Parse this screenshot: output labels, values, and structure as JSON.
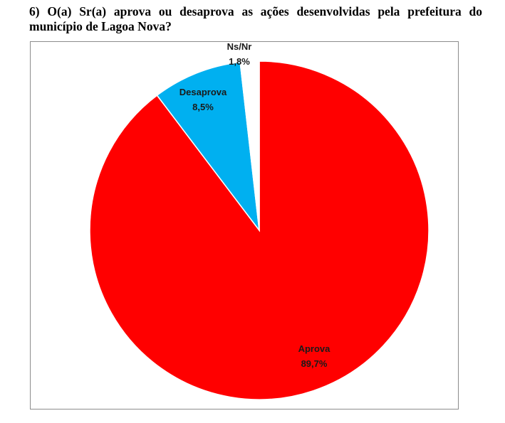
{
  "question": {
    "text": "6) O(a) Sr(a) aprova ou desaprova as ações desenvolvidas pela prefeitura do município de Lagoa Nova?"
  },
  "chart_data": {
    "type": "pie",
    "title": "",
    "start_angle_deg": 0,
    "direction": "clockwise",
    "slices": [
      {
        "label": "Aprova",
        "value": 89.7,
        "value_label": "89,7%",
        "color": "#ff0000"
      },
      {
        "label": "Desaprova",
        "value": 8.5,
        "value_label": "8,5%",
        "color": "#00b0f0"
      },
      {
        "label": "Ns/Nr",
        "value": 1.8,
        "value_label": "1,8%",
        "color": "#ffffff"
      }
    ],
    "legend": "none",
    "data_labels": true
  }
}
